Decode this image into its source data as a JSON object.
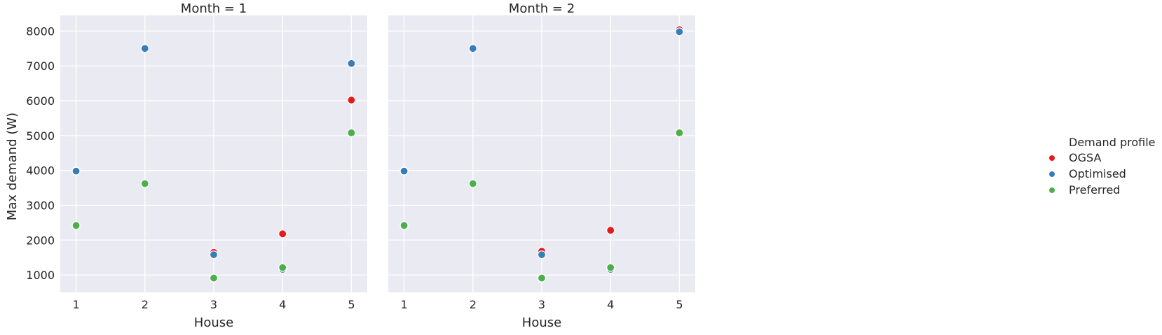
{
  "chart_data": {
    "type": "scatter",
    "ylabel": "Max demand (W)",
    "xlabel": "House",
    "x_ticks": [
      1,
      2,
      3,
      4,
      5
    ],
    "y_ticks": [
      1000,
      2000,
      3000,
      4000,
      5000,
      6000,
      7000,
      8000
    ],
    "xlim": [
      0.77,
      5.23
    ],
    "ylim": [
      500,
      8450
    ],
    "grid": true,
    "legend": {
      "title": "Demand profile",
      "placement": "right",
      "entries": [
        {
          "name": "OGSA",
          "color": "#e41a1c"
        },
        {
          "name": "Optimised",
          "color": "#377eb8"
        },
        {
          "name": "Preferred",
          "color": "#4daf4a"
        }
      ]
    },
    "panels": [
      {
        "title": "Month = 1",
        "series": [
          {
            "name": "OGSA",
            "color": "#e41a1c",
            "points": [
              [
                1,
                4000
              ],
              [
                2,
                7500
              ],
              [
                3,
                1650
              ],
              [
                4,
                2180
              ],
              [
                5,
                6020
              ]
            ]
          },
          {
            "name": "Optimised",
            "color": "#377eb8",
            "points": [
              [
                1,
                3980
              ],
              [
                2,
                7500
              ],
              [
                3,
                1580
              ],
              [
                4,
                1160
              ],
              [
                5,
                7070
              ]
            ]
          },
          {
            "name": "Preferred",
            "color": "#4daf4a",
            "points": [
              [
                1,
                2420
              ],
              [
                2,
                3620
              ],
              [
                3,
                910
              ],
              [
                4,
                1210
              ],
              [
                5,
                5080
              ]
            ]
          }
        ]
      },
      {
        "title": "Month = 2",
        "series": [
          {
            "name": "OGSA",
            "color": "#e41a1c",
            "points": [
              [
                1,
                4000
              ],
              [
                2,
                7500
              ],
              [
                3,
                1680
              ],
              [
                4,
                2280
              ],
              [
                5,
                8040
              ]
            ]
          },
          {
            "name": "Optimised",
            "color": "#377eb8",
            "points": [
              [
                1,
                3980
              ],
              [
                2,
                7500
              ],
              [
                3,
                1580
              ],
              [
                4,
                1160
              ],
              [
                5,
                7980
              ]
            ]
          },
          {
            "name": "Preferred",
            "color": "#4daf4a",
            "points": [
              [
                1,
                2420
              ],
              [
                2,
                3620
              ],
              [
                3,
                910
              ],
              [
                4,
                1210
              ],
              [
                5,
                5080
              ]
            ]
          }
        ]
      }
    ]
  }
}
